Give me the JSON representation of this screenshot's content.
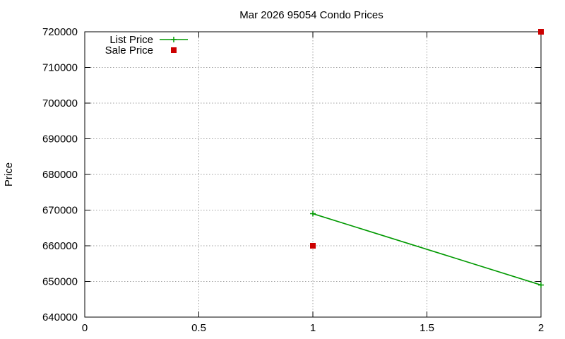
{
  "chart_data": {
    "type": "line",
    "title": "Mar 2026 95054 Condo Prices",
    "xlabel": "",
    "ylabel": "Price",
    "xlim": [
      0,
      2
    ],
    "ylim": [
      640000,
      720000
    ],
    "x_ticks": [
      0,
      0.5,
      1,
      1.5,
      2
    ],
    "x_tick_labels": [
      "0",
      "0.5",
      "1",
      "1.5",
      "2"
    ],
    "y_ticks": [
      640000,
      650000,
      660000,
      670000,
      680000,
      690000,
      700000,
      710000,
      720000
    ],
    "y_tick_labels": [
      "640000",
      "650000",
      "660000",
      "670000",
      "680000",
      "690000",
      "700000",
      "710000",
      "720000"
    ],
    "grid": true,
    "legend_position": "top-left",
    "series": [
      {
        "name": "List Price",
        "style": "line-with-plus-markers",
        "color": "#009900",
        "points": [
          [
            1,
            669000
          ],
          [
            2,
            649000
          ]
        ]
      },
      {
        "name": "Sale Price",
        "style": "square-markers",
        "color": "#cc0000",
        "points": [
          [
            1,
            660000
          ],
          [
            2,
            720000
          ]
        ]
      }
    ]
  }
}
